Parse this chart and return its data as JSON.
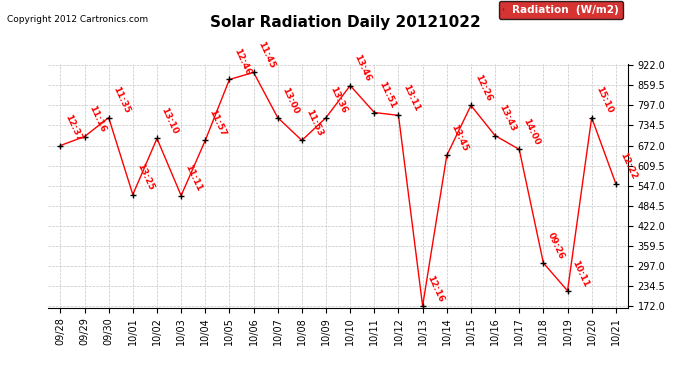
{
  "title": "Solar Radiation Daily 20121022",
  "copyright_text": "Copyright 2012 Cartronics.com",
  "legend_label": "Radiation  (W/m2)",
  "x_labels": [
    "09/28",
    "09/29",
    "09/30",
    "10/01",
    "10/02",
    "10/03",
    "10/04",
    "10/05",
    "10/06",
    "10/07",
    "10/08",
    "10/09",
    "10/10",
    "10/11",
    "10/12",
    "10/13",
    "10/14",
    "10/15",
    "10/16",
    "10/17",
    "10/18",
    "10/19",
    "10/20",
    "10/21"
  ],
  "y_values": [
    672,
    700,
    759,
    519,
    694,
    516,
    688,
    878,
    900,
    759,
    688,
    759,
    859,
    775,
    766,
    172,
    641,
    797,
    703,
    660,
    306,
    219,
    759,
    553
  ],
  "time_labels": [
    "12:37",
    "11:16",
    "11:35",
    "13:25",
    "13:10",
    "11:11",
    "11:57",
    "12:46",
    "11:45",
    "13:00",
    "11:53",
    "13:36",
    "13:46",
    "11:51",
    "13:11",
    "12:16",
    "13:45",
    "12:26",
    "13:43",
    "14:00",
    "09:26",
    "10:11",
    "15:10",
    "12:22"
  ],
  "y_ticks": [
    172.0,
    234.5,
    297.0,
    359.5,
    422.0,
    484.5,
    547.0,
    609.5,
    672.0,
    734.5,
    797.0,
    859.5,
    922.0
  ],
  "y_min": 172.0,
  "y_max": 922.0,
  "line_color": "#FF0000",
  "marker_color": "#000000",
  "label_color": "#FF0000",
  "grid_color": "#C0C0C0",
  "background_color": "#FFFFFF",
  "title_fontsize": 11,
  "label_fontsize": 6.5,
  "tick_fontsize": 7,
  "legend_bg": "#CC0000",
  "legend_text_color": "#FFFFFF"
}
